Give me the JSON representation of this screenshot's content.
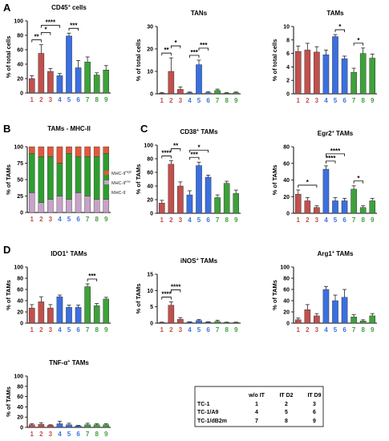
{
  "panels": [
    "A",
    "B",
    "C",
    "D"
  ],
  "legend_b": [
    {
      "label": "MHC-II",
      "sup": "high",
      "color": "#e4573a"
    },
    {
      "label": "MHC-II",
      "sup": "low",
      "color": "#c8a2c8"
    },
    {
      "label": "MHC-II",
      "sup": "-",
      "color": "#2e9d2e"
    }
  ],
  "table": {
    "headers": [
      "",
      "w/o IT",
      "IT D2",
      "IT D9"
    ],
    "rows": [
      [
        "TC-1",
        "1",
        "2",
        "3"
      ],
      [
        "TC-1/A9",
        "4",
        "5",
        "6"
      ],
      [
        "TC-1/dB2m",
        "7",
        "8",
        "9"
      ]
    ]
  },
  "colors": {
    "red": "#c0504d",
    "blue": "#3b6fe0",
    "green": "#3ea13a",
    "tc1": "#c0504d",
    "a9": "#3b6fe0",
    "db2m": "#3ea13a",
    "stack_low": "#c8a2c8",
    "stack_neg": "#2e9d2e",
    "stack_high": "#e4573a"
  },
  "chart_data": [
    {
      "id": "cd45",
      "type": "bar",
      "title": "CD45",
      "title_sup": "+",
      "title_after": " cells",
      "ylabel": "% of total cells",
      "ylim": [
        0,
        100
      ],
      "yticks": [
        "0",
        "20",
        "40",
        "60",
        "80",
        "100"
      ],
      "categories": [
        "1",
        "2",
        "3",
        "4",
        "5",
        "6",
        "7",
        "8",
        "9"
      ],
      "values": [
        20,
        55,
        30,
        24,
        79,
        35,
        43,
        25,
        32
      ],
      "errors": [
        4,
        12,
        4,
        3,
        4,
        10,
        7,
        3,
        6
      ],
      "sig": [
        {
          "from": 1,
          "to": 2,
          "label": "**"
        },
        {
          "from": 2,
          "to": 3,
          "label": "*"
        },
        {
          "from": 2,
          "to": 4,
          "label": "****"
        },
        {
          "from": 5,
          "to": 6,
          "label": "***"
        }
      ]
    },
    {
      "id": "tans",
      "type": "bar",
      "title": "TANs",
      "title_sup": "",
      "title_after": "",
      "ylabel": "% of total cells",
      "ylim": [
        0,
        30
      ],
      "yticks": [
        "0",
        "10",
        "20",
        "30"
      ],
      "categories": [
        "1",
        "2",
        "3",
        "4",
        "5",
        "6",
        "7",
        "8",
        "9"
      ],
      "values": [
        0.3,
        10,
        2,
        0.5,
        13,
        0.5,
        1.5,
        0.3,
        0.5
      ],
      "errors": [
        0.3,
        6,
        1,
        0.3,
        2,
        0.4,
        0.6,
        0.2,
        0.3
      ],
      "sig": [
        {
          "from": 1,
          "to": 2,
          "label": "**"
        },
        {
          "from": 2,
          "to": 3,
          "label": "*"
        },
        {
          "from": 4,
          "to": 5,
          "label": "***"
        },
        {
          "from": 5,
          "to": 6,
          "label": "***"
        }
      ]
    },
    {
      "id": "tams",
      "type": "bar",
      "title": "TAMs",
      "title_sup": "",
      "title_after": "",
      "ylabel": "% of total cells",
      "ylim": [
        0,
        10
      ],
      "yticks": [
        "0",
        "2",
        "4",
        "6",
        "8",
        "10"
      ],
      "categories": [
        "1",
        "2",
        "3",
        "4",
        "5",
        "6",
        "7",
        "8",
        "9"
      ],
      "values": [
        6.3,
        6.5,
        6.2,
        5.8,
        8.5,
        5.2,
        3.2,
        6,
        5.3
      ],
      "errors": [
        0.8,
        1,
        0.8,
        0.7,
        0.3,
        0.4,
        0.6,
        0.8,
        0.6
      ],
      "sig": [
        {
          "from": 5,
          "to": 6,
          "label": "*"
        },
        {
          "from": 7,
          "to": 8,
          "label": "*"
        }
      ]
    },
    {
      "id": "mhc",
      "type": "stacked-bar",
      "title": "TAMs - MHC-II",
      "ylabel": "% of TAMs",
      "ylim": [
        0,
        100
      ],
      "yticks": [
        "0",
        "25",
        "50",
        "75",
        "100"
      ],
      "categories": [
        "1",
        "2",
        "3",
        "4",
        "5",
        "6",
        "7",
        "8",
        "9"
      ],
      "series": [
        {
          "name": "MHC-II low",
          "values": [
            30,
            15,
            20,
            25,
            20,
            30,
            25,
            20,
            20
          ]
        },
        {
          "name": "MHC-II -",
          "values": [
            60,
            70,
            65,
            50,
            70,
            55,
            60,
            65,
            70
          ]
        },
        {
          "name": "MHC-II high",
          "values": [
            10,
            15,
            15,
            25,
            10,
            15,
            15,
            15,
            10
          ]
        }
      ]
    },
    {
      "id": "cd38",
      "type": "bar",
      "title": "CD38",
      "title_sup": "+",
      "title_after": " TAMs",
      "ylabel": "% of TAMs",
      "ylim": [
        0,
        100
      ],
      "yticks": [
        "0",
        "20",
        "40",
        "60",
        "80",
        "100"
      ],
      "categories": [
        "1",
        "2",
        "3",
        "4",
        "5",
        "6",
        "7",
        "8",
        "9"
      ],
      "values": [
        15,
        72,
        40,
        27,
        70,
        53,
        23,
        44,
        29
      ],
      "errors": [
        4,
        5,
        6,
        6,
        5,
        3,
        4,
        3,
        5
      ],
      "sig": [
        {
          "from": 1,
          "to": 2,
          "label": "****"
        },
        {
          "from": 2,
          "to": 3,
          "label": "**"
        },
        {
          "from": 4,
          "to": 5,
          "label": "***"
        },
        {
          "from": 4,
          "to": 6,
          "label": "*"
        }
      ]
    },
    {
      "id": "egr2",
      "type": "bar",
      "title": "Egr2",
      "title_sup": "+",
      "title_after": " TAMs",
      "ylabel": "% of TAMs",
      "ylim": [
        0,
        80
      ],
      "yticks": [
        "0",
        "20",
        "40",
        "60",
        "80"
      ],
      "categories": [
        "1",
        "2",
        "3",
        "4",
        "5",
        "6",
        "7",
        "8",
        "9"
      ],
      "values": [
        23,
        15,
        7,
        53,
        15,
        15,
        29,
        7,
        15
      ],
      "errors": [
        5,
        4,
        2,
        4,
        4,
        3,
        4,
        2,
        3
      ],
      "sig": [
        {
          "from": 1,
          "to": 3,
          "label": "*"
        },
        {
          "from": 4,
          "to": 5,
          "label": "****"
        },
        {
          "from": 4,
          "to": 6,
          "label": "****"
        },
        {
          "from": 7,
          "to": 8,
          "label": "*"
        }
      ]
    },
    {
      "id": "ido1",
      "type": "bar",
      "title": "IDO1",
      "title_sup": "+",
      "title_after": " TAMs",
      "ylabel": "% of TAMs",
      "ylim": [
        0,
        100
      ],
      "yticks": [
        "0",
        "20",
        "40",
        "60",
        "80",
        "100"
      ],
      "categories": [
        "1",
        "2",
        "3",
        "4",
        "5",
        "6",
        "7",
        "8",
        "9"
      ],
      "values": [
        27,
        38,
        27,
        47,
        28,
        28,
        65,
        31,
        43
      ],
      "errors": [
        6,
        9,
        6,
        3,
        4,
        4,
        5,
        4,
        3
      ],
      "sig": [
        {
          "from": 7,
          "to": 8,
          "label": "***"
        }
      ]
    },
    {
      "id": "inos",
      "type": "bar",
      "title": "iNOS",
      "title_sup": "+",
      "title_after": " TAMs",
      "ylabel": "% of TAMs",
      "ylim": [
        0,
        15
      ],
      "yticks": [
        "0",
        "5",
        "10",
        "15"
      ],
      "categories": [
        "1",
        "2",
        "3",
        "4",
        "5",
        "6",
        "7",
        "8",
        "9"
      ],
      "values": [
        0.2,
        5.5,
        1.2,
        0.3,
        0.8,
        0.3,
        0.5,
        0.2,
        0.2
      ],
      "errors": [
        0.1,
        1,
        0.5,
        0.1,
        0.3,
        0.1,
        0.4,
        0.1,
        0.1
      ],
      "sig": [
        {
          "from": 1,
          "to": 2,
          "label": "****"
        },
        {
          "from": 2,
          "to": 3,
          "label": "****"
        }
      ]
    },
    {
      "id": "arg1",
      "type": "bar",
      "title": "Arg1",
      "title_sup": "+",
      "title_after": " TAMs",
      "ylabel": "% of TAMs",
      "ylim": [
        0,
        100
      ],
      "yticks": [
        "0",
        "20",
        "40",
        "60",
        "80",
        "100"
      ],
      "categories": [
        "1",
        "2",
        "3",
        "4",
        "5",
        "6",
        "7",
        "8",
        "9"
      ],
      "values": [
        6,
        24,
        13,
        60,
        40,
        46,
        11,
        4,
        13
      ],
      "errors": [
        3,
        9,
        4,
        5,
        10,
        14,
        4,
        2,
        4
      ],
      "sig": []
    },
    {
      "id": "tnf",
      "type": "bar",
      "title": "TNF-α",
      "title_sup": "+",
      "title_after": " TAMs",
      "ylabel": "% of TAMs",
      "ylim": [
        0,
        100
      ],
      "yticks": [
        "0",
        "20",
        "40",
        "60",
        "80",
        "100"
      ],
      "categories": [
        "1",
        "2",
        "3",
        "4",
        "5",
        "6",
        "7",
        "8",
        "9"
      ],
      "values": [
        5,
        6,
        4,
        7,
        5,
        3,
        5,
        5,
        5
      ],
      "errors": [
        2,
        3,
        1,
        5,
        3,
        1,
        3,
        2,
        2
      ],
      "sig": []
    }
  ]
}
